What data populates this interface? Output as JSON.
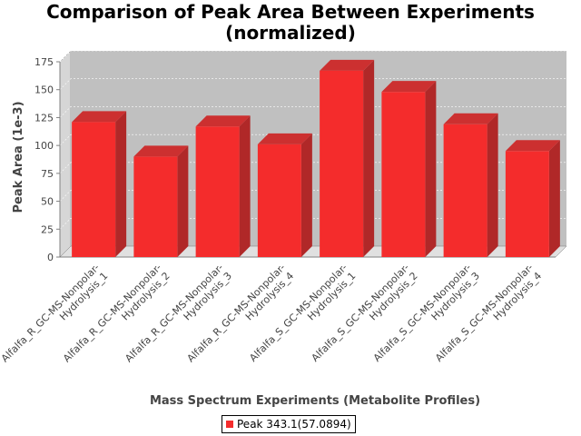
{
  "chart_data": {
    "type": "bar",
    "title": [
      "Comparison of Peak Area Between Experiments",
      "(normalized)"
    ],
    "xlabel": "Mass Spectrum Experiments (Metabolite Profiles)",
    "ylabel": "Peak Area (1e-3)",
    "ylim": [
      0,
      175
    ],
    "yticks": [
      0,
      25,
      50,
      75,
      100,
      125,
      150,
      175
    ],
    "grid": true,
    "legend_position": "bottom",
    "categories": [
      [
        "Alfalfa_R_GC-MS-Nonpolar-",
        "Hydrolysis_1"
      ],
      [
        "Alfalfa_R_GC-MS-Nonpolar-",
        "Hydrolysis_2"
      ],
      [
        "Alfalfa_R_GC-MS-Nonpolar-",
        "Hydrolysis_3"
      ],
      [
        "Alfalfa_R_GC-MS-Nonpolar-",
        "Hydrolysis_4"
      ],
      [
        "Alfalfa_S_GC-MS-Nonpolar-",
        "Hydrolysis_1"
      ],
      [
        "Alfalfa_S_GC-MS-Nonpolar-",
        "Hydrolysis_2"
      ],
      [
        "Alfalfa_S_GC-MS-Nonpolar-",
        "Hydrolysis_3"
      ],
      [
        "Alfalfa_S_GC-MS-Nonpolar-",
        "Hydrolysis_4"
      ]
    ],
    "series": [
      {
        "name": "Peak 343.1(57.0894)",
        "values": [
          121,
          90,
          117,
          101,
          167,
          148,
          119,
          95
        ],
        "color": "#f42c2c"
      }
    ]
  }
}
